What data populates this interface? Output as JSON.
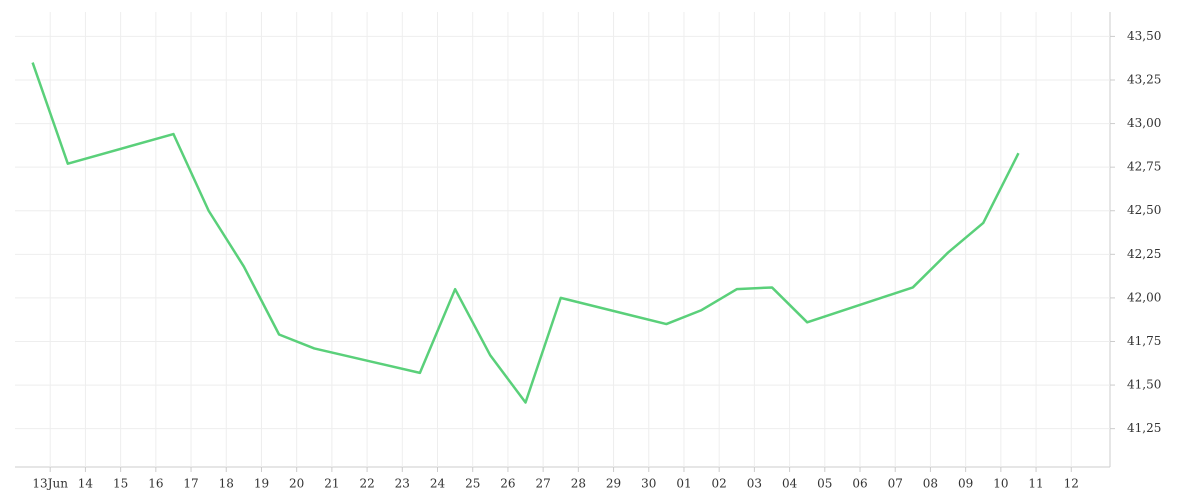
{
  "chart_data": {
    "type": "line",
    "x": [
      -0.5,
      0.5,
      3.5,
      4.5,
      5.5,
      6.5,
      7.5,
      10.5,
      11.5,
      12.5,
      13.5,
      14.5,
      17.5,
      18.5,
      19.5,
      20.5,
      21.5,
      24.5,
      25.5,
      26.5,
      27.5
    ],
    "series": [
      {
        "color": "#5ad07a",
        "values": [
          43.35,
          42.77,
          42.94,
          42.5,
          42.18,
          41.79,
          41.71,
          41.57,
          42.05,
          41.67,
          41.4,
          42.0,
          41.85,
          41.93,
          42.05,
          42.06,
          41.86,
          42.06,
          42.26,
          42.43,
          42.83
        ]
      }
    ],
    "xlim": [
      -1,
      30.1
    ],
    "xticks": [
      {
        "value": 0,
        "label": "13Jun"
      },
      {
        "value": 1,
        "label": "14"
      },
      {
        "value": 2,
        "label": "15"
      },
      {
        "value": 3,
        "label": "16"
      },
      {
        "value": 4,
        "label": "17"
      },
      {
        "value": 5,
        "label": "18"
      },
      {
        "value": 6,
        "label": "19"
      },
      {
        "value": 7,
        "label": "20"
      },
      {
        "value": 8,
        "label": "21"
      },
      {
        "value": 9,
        "label": "22"
      },
      {
        "value": 10,
        "label": "23"
      },
      {
        "value": 11,
        "label": "24"
      },
      {
        "value": 12,
        "label": "25"
      },
      {
        "value": 13,
        "label": "26"
      },
      {
        "value": 14,
        "label": "27"
      },
      {
        "value": 15,
        "label": "28"
      },
      {
        "value": 16,
        "label": "29"
      },
      {
        "value": 17,
        "label": "30"
      },
      {
        "value": 18,
        "label": "01"
      },
      {
        "value": 19,
        "label": "02"
      },
      {
        "value": 20,
        "label": "03"
      },
      {
        "value": 21,
        "label": "04"
      },
      {
        "value": 22,
        "label": "05"
      },
      {
        "value": 23,
        "label": "06"
      },
      {
        "value": 24,
        "label": "07"
      },
      {
        "value": 25,
        "label": "08"
      },
      {
        "value": 26,
        "label": "09"
      },
      {
        "value": 27,
        "label": "10"
      },
      {
        "value": 28,
        "label": "11"
      },
      {
        "value": 29,
        "label": "12"
      }
    ],
    "ylim": [
      41.03,
      43.64
    ],
    "yticks": [
      {
        "value": 41.25,
        "label": "41,25"
      },
      {
        "value": 41.5,
        "label": "41,50"
      },
      {
        "value": 41.75,
        "label": "41,75"
      },
      {
        "value": 42,
        "label": "42,00"
      },
      {
        "value": 42.25,
        "label": "42,25"
      },
      {
        "value": 42.5,
        "label": "42,50"
      },
      {
        "value": 42.75,
        "label": "42,75"
      },
      {
        "value": 43,
        "label": "43,00"
      },
      {
        "value": 43.25,
        "label": "43,25"
      },
      {
        "value": 43.5,
        "label": "43,50"
      }
    ],
    "grid": true
  }
}
